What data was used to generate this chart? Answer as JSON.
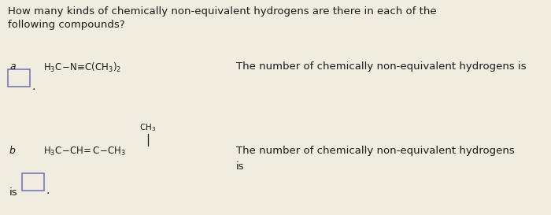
{
  "bg_color": "#f0ece0",
  "text_color": "#1a1a1a",
  "header_text": "How many kinds of chemically non-equivalent hydrogens are there in each of the\nfollowing compounds?",
  "header_fontsize": 9.5,
  "label_a": "a",
  "label_b": "b",
  "answer_text_a": "The number of chemically non-equivalent hydrogens is",
  "answer_text_b": "The number of chemically non-equivalent hydrogens",
  "is_text": "is",
  "box_color": "#7777bb",
  "mol_fontsize": 8.5,
  "answer_fontsize": 9.5,
  "label_fontsize": 9.0
}
